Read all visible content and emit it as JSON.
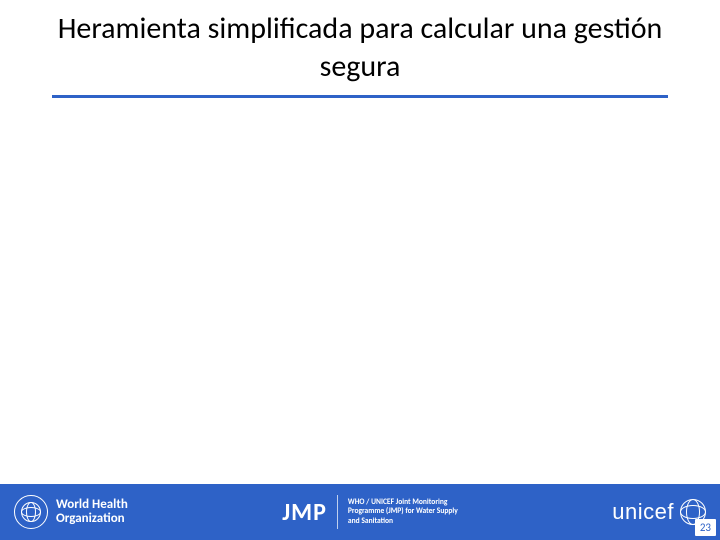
{
  "title": "Heramienta simplificada para calcular una gestión segura",
  "footer": {
    "background_color": "#2e62c7",
    "who": {
      "line1": "World Health",
      "line2": "Organization"
    },
    "jmp": {
      "label": "JMP",
      "sub_line1": "WHO / UNICEF Joint Monitoring",
      "sub_line2": "Programme (JMP) for Water Supply",
      "sub_line3": "and Sanitation"
    },
    "unicef": {
      "label": "unicef"
    }
  },
  "page_number": "23"
}
